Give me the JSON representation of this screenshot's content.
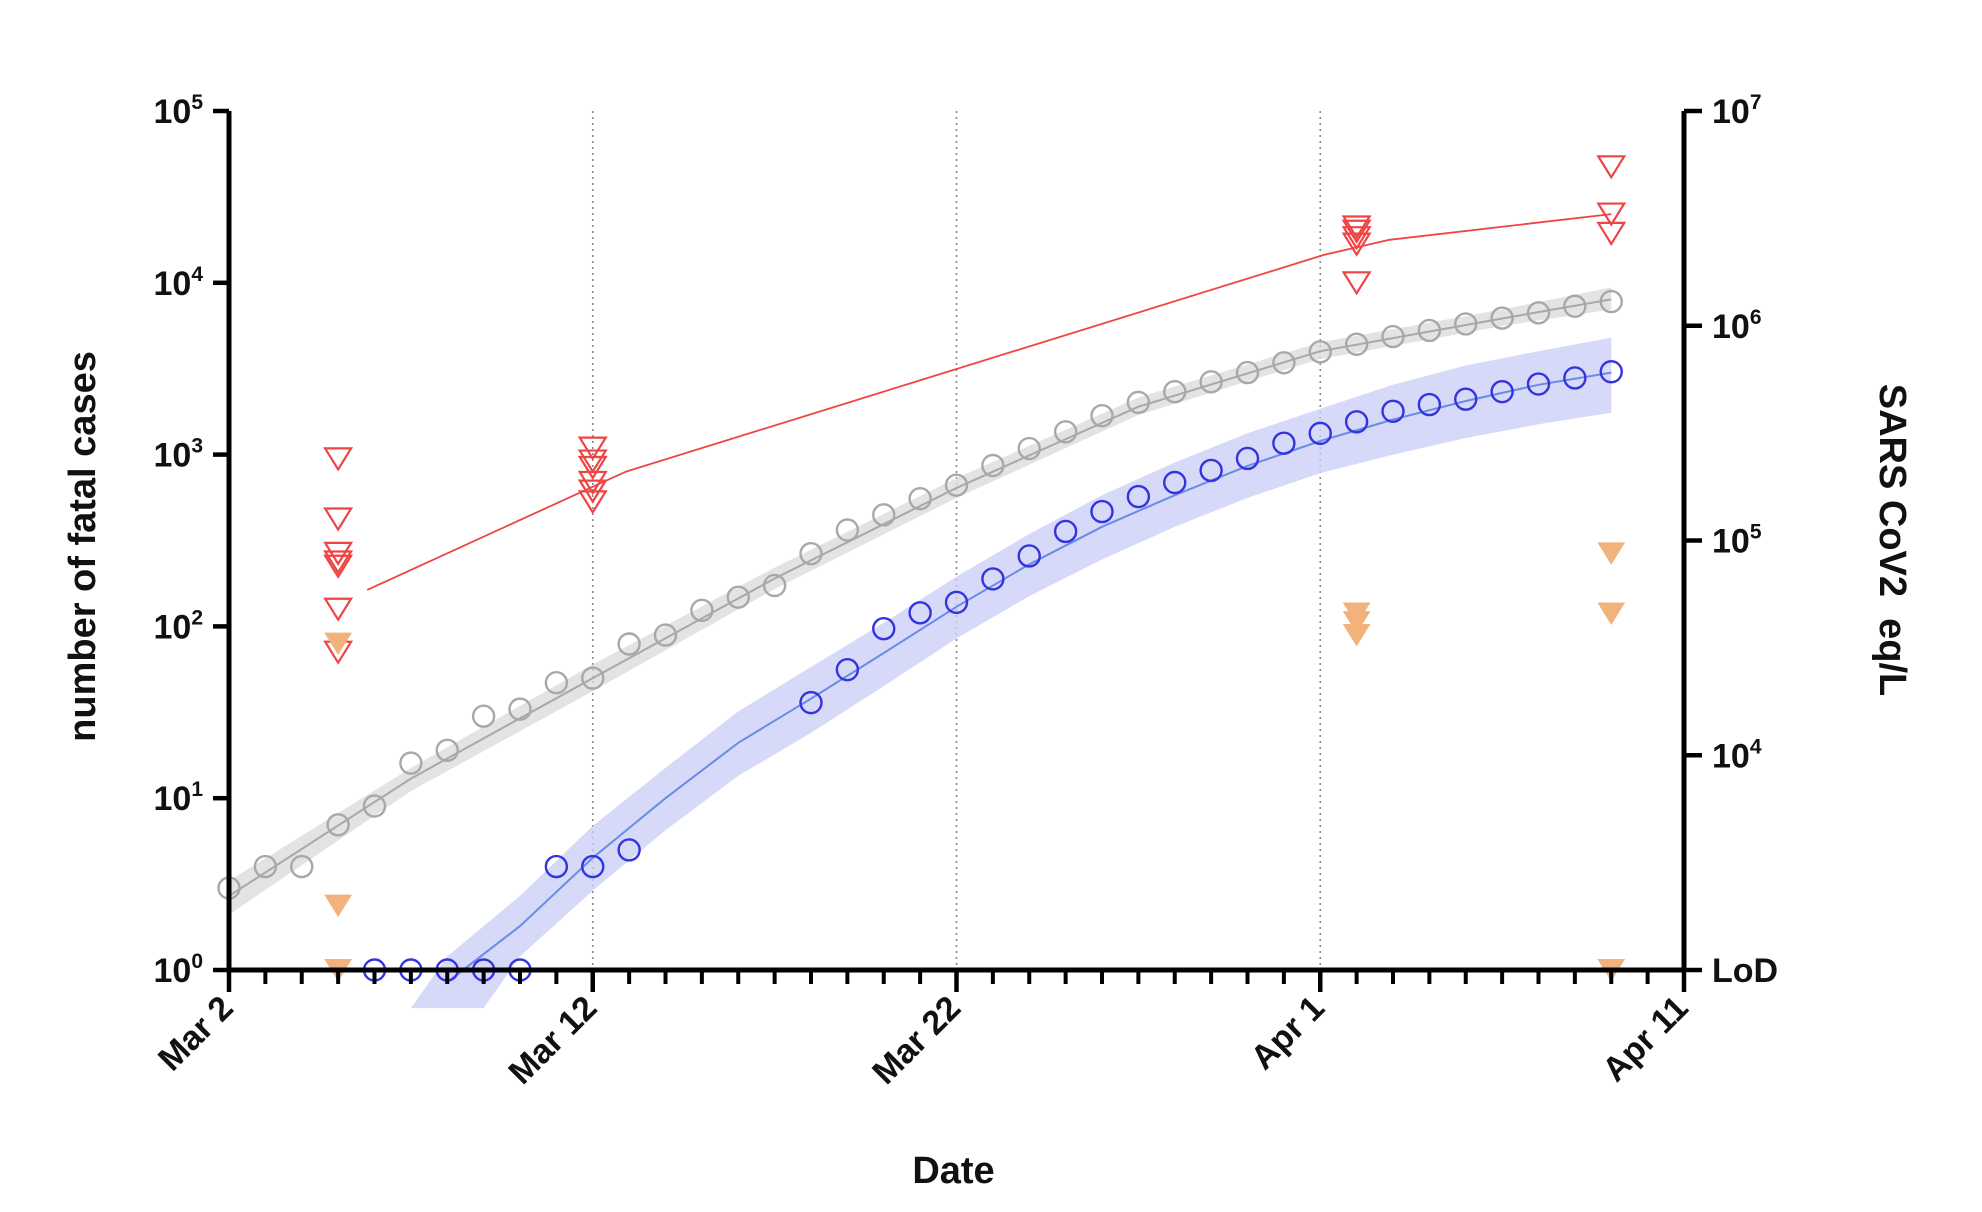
{
  "chart_data": {
    "type": "scatter",
    "title": "",
    "xlabel": "Date",
    "ylabel_left": "number of fatal cases",
    "ylabel_right": "SARS CoV2  eq/L",
    "x_start_date": "Mar 2",
    "x_tick_labels": [
      {
        "day": 0,
        "label": "Mar 2"
      },
      {
        "day": 10,
        "label": "Mar 12"
      },
      {
        "day": 20,
        "label": "Mar 22"
      },
      {
        "day": 30,
        "label": "Apr 1"
      },
      {
        "day": 40,
        "label": "Apr 11"
      }
    ],
    "xlim": [
      0,
      40
    ],
    "vertical_gridlines_days": [
      10,
      20,
      30
    ],
    "y_left": {
      "scale": "log",
      "lim": [
        1,
        100000
      ],
      "tick_labels": [
        {
          "value": 1,
          "base": "10",
          "exp": "0"
        },
        {
          "value": 10,
          "base": "10",
          "exp": "1"
        },
        {
          "value": 100,
          "base": "10",
          "exp": "2"
        },
        {
          "value": 1000,
          "base": "10",
          "exp": "3"
        },
        {
          "value": 10000,
          "base": "10",
          "exp": "4"
        },
        {
          "value": 100000,
          "base": "10",
          "exp": "5"
        }
      ]
    },
    "y_right": {
      "scale": "log",
      "lim_log10": [
        3,
        7
      ],
      "tick_labels": [
        {
          "log10": 4,
          "base": "10",
          "exp": "4"
        },
        {
          "log10": 5,
          "base": "10",
          "exp": "5"
        },
        {
          "log10": 6,
          "base": "10",
          "exp": "6"
        },
        {
          "log10": 7,
          "base": "10",
          "exp": "7"
        }
      ],
      "lod_label": "LoD",
      "lod_log10": 3
    },
    "series": [
      {
        "role": "cases-gray",
        "axis": "left",
        "marker": "open-circle",
        "color": "#a8a8a8",
        "band_color": "#d9d9d9",
        "points": [
          [
            0,
            3
          ],
          [
            1,
            4
          ],
          [
            2,
            4
          ],
          [
            3,
            7
          ],
          [
            4,
            9
          ],
          [
            5,
            16
          ],
          [
            6,
            19
          ],
          [
            7,
            30
          ],
          [
            8,
            33
          ],
          [
            9,
            47
          ],
          [
            10,
            50
          ],
          [
            11,
            79
          ],
          [
            12,
            89
          ],
          [
            13,
            124
          ],
          [
            14,
            148
          ],
          [
            15,
            173
          ],
          [
            16,
            265
          ],
          [
            17,
            364
          ],
          [
            18,
            446
          ],
          [
            19,
            554
          ],
          [
            20,
            664
          ],
          [
            21,
            864
          ],
          [
            22,
            1085
          ],
          [
            23,
            1357
          ],
          [
            24,
            1685
          ],
          [
            25,
            2014
          ],
          [
            26,
            2324
          ],
          [
            27,
            2651
          ],
          [
            28,
            3001
          ],
          [
            29,
            3423
          ],
          [
            30,
            3963
          ],
          [
            31,
            4388
          ],
          [
            32,
            4862
          ],
          [
            33,
            5281
          ],
          [
            34,
            5763
          ],
          [
            35,
            6234
          ],
          [
            36,
            6685
          ],
          [
            37,
            7304
          ],
          [
            38,
            7777
          ]
        ],
        "fit": [
          [
            0,
            2.7
          ],
          [
            5,
            13
          ],
          [
            10,
            50
          ],
          [
            15,
            190
          ],
          [
            20,
            640
          ],
          [
            25,
            1900
          ],
          [
            30,
            4000
          ],
          [
            35,
            6200
          ],
          [
            38,
            8000
          ]
        ],
        "band_lower": [
          [
            0,
            2.1
          ],
          [
            5,
            11
          ],
          [
            10,
            42
          ],
          [
            15,
            165
          ],
          [
            20,
            560
          ],
          [
            25,
            1700
          ],
          [
            30,
            3600
          ],
          [
            35,
            5600
          ],
          [
            38,
            7000
          ]
        ],
        "band_upper": [
          [
            0,
            3.3
          ],
          [
            5,
            15
          ],
          [
            10,
            60
          ],
          [
            15,
            220
          ],
          [
            20,
            730
          ],
          [
            25,
            2150
          ],
          [
            30,
            4500
          ],
          [
            35,
            7000
          ],
          [
            38,
            9400
          ]
        ]
      },
      {
        "role": "cases-blue",
        "axis": "left",
        "marker": "open-circle",
        "color": "#3333e0",
        "line_color": "#6a8ce6",
        "band_color": "#c8ccf5",
        "points": [
          [
            4,
            1
          ],
          [
            5,
            1
          ],
          [
            6,
            1
          ],
          [
            7,
            1
          ],
          [
            8,
            1
          ],
          [
            9,
            4
          ],
          [
            10,
            4
          ],
          [
            11,
            5
          ],
          [
            16,
            36
          ],
          [
            17,
            56
          ],
          [
            18,
            97
          ],
          [
            19,
            120
          ],
          [
            20,
            138
          ],
          [
            21,
            189
          ],
          [
            22,
            257
          ],
          [
            23,
            357
          ],
          [
            24,
            466
          ],
          [
            25,
            570
          ],
          [
            26,
            688
          ],
          [
            27,
            809
          ],
          [
            28,
            950
          ],
          [
            29,
            1165
          ],
          [
            30,
            1329
          ],
          [
            31,
            1552
          ],
          [
            32,
            1787
          ],
          [
            33,
            1956
          ],
          [
            34,
            2102
          ],
          [
            35,
            2325
          ],
          [
            36,
            2575
          ],
          [
            37,
            2793
          ],
          [
            38,
            3036
          ]
        ],
        "fit": [
          [
            6,
            0.85
          ],
          [
            8,
            1.8
          ],
          [
            10,
            4.5
          ],
          [
            12,
            10
          ],
          [
            14,
            21
          ],
          [
            16,
            38
          ],
          [
            18,
            70
          ],
          [
            20,
            130
          ],
          [
            22,
            230
          ],
          [
            24,
            380
          ],
          [
            26,
            580
          ],
          [
            28,
            860
          ],
          [
            30,
            1200
          ],
          [
            32,
            1600
          ],
          [
            34,
            2050
          ],
          [
            36,
            2550
          ],
          [
            38,
            3000
          ]
        ],
        "band_lower": [
          [
            7,
            0.6
          ],
          [
            8,
            1.2
          ],
          [
            10,
            2.9
          ],
          [
            12,
            6.5
          ],
          [
            14,
            13.5
          ],
          [
            16,
            24
          ],
          [
            18,
            45
          ],
          [
            20,
            85
          ],
          [
            22,
            150
          ],
          [
            24,
            245
          ],
          [
            26,
            380
          ],
          [
            28,
            560
          ],
          [
            30,
            780
          ],
          [
            32,
            1000
          ],
          [
            34,
            1250
          ],
          [
            36,
            1500
          ],
          [
            38,
            1750
          ]
        ],
        "band_upper": [
          [
            5,
            0.6
          ],
          [
            6,
            1.2
          ],
          [
            8,
            2.7
          ],
          [
            10,
            6.9
          ],
          [
            12,
            15
          ],
          [
            14,
            32
          ],
          [
            16,
            58
          ],
          [
            18,
            105
          ],
          [
            20,
            195
          ],
          [
            22,
            345
          ],
          [
            24,
            580
          ],
          [
            26,
            900
          ],
          [
            28,
            1330
          ],
          [
            30,
            1850
          ],
          [
            32,
            2550
          ],
          [
            34,
            3300
          ],
          [
            36,
            4000
          ],
          [
            38,
            4800
          ]
        ]
      },
      {
        "role": "sars-red",
        "axis": "right",
        "marker": "open-triangle-down",
        "color": "#ee4444",
        "line": true,
        "points": [
          [
            3,
            5.38
          ],
          [
            3,
            5.1
          ],
          [
            3,
            4.94
          ],
          [
            3,
            4.9
          ],
          [
            3,
            4.88
          ],
          [
            3,
            4.68
          ],
          [
            3,
            4.48
          ],
          [
            10,
            5.43
          ],
          [
            10,
            5.37
          ],
          [
            10,
            5.34
          ],
          [
            10,
            5.27
          ],
          [
            10,
            5.23
          ],
          [
            10,
            5.18
          ],
          [
            31,
            6.46
          ],
          [
            31,
            6.44
          ],
          [
            31,
            6.41
          ],
          [
            31,
            6.38
          ],
          [
            31,
            6.2
          ],
          [
            38,
            6.74
          ],
          [
            38,
            6.52
          ],
          [
            38,
            6.43
          ]
        ],
        "mean_line": [
          [
            3.8,
            4.77
          ],
          [
            10.9,
            5.32
          ],
          [
            30.1,
            6.33
          ],
          [
            31.9,
            6.4
          ],
          [
            38,
            6.52
          ]
        ]
      },
      {
        "role": "sars-orange",
        "axis": "right",
        "marker": "filled-triangle-down",
        "color": "#f2b27c",
        "line": false,
        "points": [
          [
            3,
            4.52
          ],
          [
            3,
            3.3
          ],
          [
            3,
            3.0
          ],
          [
            31,
            4.66
          ],
          [
            31,
            4.62
          ],
          [
            31,
            4.56
          ],
          [
            38,
            4.94
          ],
          [
            38,
            4.66
          ],
          [
            38,
            3.0
          ]
        ]
      }
    ]
  }
}
